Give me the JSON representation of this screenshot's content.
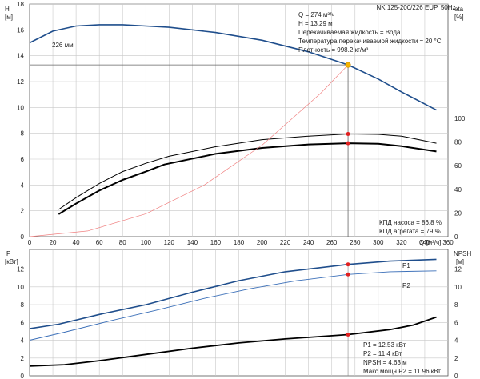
{
  "header": {
    "model": "NK 125-200/226 EUP, 50Hz",
    "impeller_label": "226 мм"
  },
  "info": {
    "flow": "Q = 274 м³/ч",
    "head": "H = 13.29 м",
    "liquid": "Перекачиваемая жидкость = Вода",
    "temperature": "Температура перекачиваемой жидкости = 20 °C",
    "density": "Плотность = 998.2 кг/м³"
  },
  "efficiency_info": {
    "pump": "КПД насоса = 86.8 %",
    "unit": "КПД агрегата = 79 %"
  },
  "power_info": {
    "p1": "P1 = 12.53 кВт",
    "p2": "P2 = 11.4 кВт",
    "npsh": "NPSH = 4.63 м",
    "pmax": "Макс.мощн.P2 = 11.96 кВт"
  },
  "axes": {
    "h_label": "H",
    "h_unit": "[м]",
    "eta_label": "eta",
    "eta_unit": "[%]",
    "q_label": "Q [м³/ч]",
    "p_label": "P",
    "p_unit": "[кВт]",
    "npsh_label": "NPSH",
    "npsh_unit": "[м]",
    "p1_label": "P1",
    "p2_label": "P2"
  },
  "colors": {
    "blue": "#1f4e8c",
    "blue_light": "#3b6fb8",
    "black": "#000000",
    "red": "#e02020",
    "red_line": "#f08080",
    "orange": "#f5b400",
    "grid": "#c8c8c8"
  },
  "chart_data": [
    {
      "type": "line",
      "name": "head",
      "xlim": [
        0,
        360
      ],
      "ylim": [
        0,
        18
      ],
      "x_ticks": [
        0,
        20,
        40,
        60,
        80,
        100,
        120,
        140,
        160,
        180,
        200,
        220,
        240,
        260,
        280,
        300,
        320,
        340,
        360
      ],
      "y_ticks": [
        0,
        2,
        4,
        6,
        8,
        10,
        12,
        14,
        16,
        18
      ],
      "eta_ticks": [
        0,
        20,
        40,
        60,
        80,
        100
      ],
      "eta_scale": "eta 0–100 % on right axis",
      "series": [
        {
          "key": "head",
          "color": "blue",
          "x": [
            0,
            20,
            40,
            60,
            80,
            100,
            120,
            160,
            200,
            240,
            274,
            300,
            320,
            350
          ],
          "y": [
            15.0,
            15.9,
            16.3,
            16.4,
            16.4,
            16.3,
            16.2,
            15.8,
            15.2,
            14.3,
            13.29,
            12.2,
            11.2,
            9.8
          ]
        },
        {
          "key": "eta_pump",
          "color": "black",
          "width": 1,
          "x": [
            25,
            40,
            60,
            80,
            100,
            120,
            160,
            200,
            240,
            274,
            300,
            320,
            350
          ],
          "y": [
            23,
            33,
            45,
            55,
            62,
            68,
            76,
            82,
            85,
            86.8,
            86.5,
            85,
            79
          ]
        },
        {
          "key": "eta_unit",
          "color": "black",
          "width": 2,
          "x": [
            25,
            40,
            60,
            80,
            100,
            116,
            160,
            200,
            240,
            274,
            300,
            320,
            350
          ],
          "y": [
            19,
            28,
            39,
            48,
            55,
            61,
            70,
            75,
            78,
            79,
            78.5,
            76.5,
            72
          ]
        },
        {
          "key": "system",
          "color": "red_line",
          "width": 0.7,
          "x": [
            0,
            50,
            100,
            150,
            200,
            250,
            274
          ],
          "y": [
            0,
            0.44,
            1.77,
            3.98,
            7.08,
            11.06,
            13.29
          ]
        }
      ],
      "operating_point": {
        "q": 274,
        "h": 13.29,
        "eta_pump": 86.8,
        "eta_unit": 79
      }
    },
    {
      "type": "line",
      "name": "power_npsh",
      "xlim": [
        0,
        360
      ],
      "ylim": [
        0,
        14
      ],
      "y_ticks": [
        0,
        2,
        4,
        6,
        8,
        10,
        12
      ],
      "npsh_ticks": [
        0,
        2,
        4,
        6,
        8,
        10,
        12
      ],
      "series": [
        {
          "key": "p1",
          "color": "blue",
          "width": 1.6,
          "x": [
            0,
            25,
            60,
            100,
            140,
            180,
            220,
            274,
            310,
            350
          ],
          "y": [
            5.3,
            5.8,
            6.9,
            8.0,
            9.4,
            10.7,
            11.7,
            12.53,
            12.9,
            13.1
          ]
        },
        {
          "key": "p2",
          "color": "blue_light",
          "width": 0.9,
          "x": [
            0,
            30,
            70,
            110,
            150,
            190,
            230,
            274,
            310,
            350
          ],
          "y": [
            4.0,
            4.9,
            6.2,
            7.4,
            8.7,
            9.8,
            10.7,
            11.4,
            11.7,
            11.8
          ]
        },
        {
          "key": "npsh",
          "color": "black",
          "width": 1.8,
          "x": [
            0,
            30,
            60,
            100,
            140,
            180,
            220,
            274,
            310,
            330,
            350
          ],
          "y": [
            1.1,
            1.25,
            1.7,
            2.4,
            3.1,
            3.7,
            4.15,
            4.63,
            5.2,
            5.7,
            6.6
          ]
        }
      ],
      "operating_point": {
        "q": 274,
        "p1": 12.53,
        "p2": 11.4,
        "npsh": 4.63
      }
    }
  ]
}
